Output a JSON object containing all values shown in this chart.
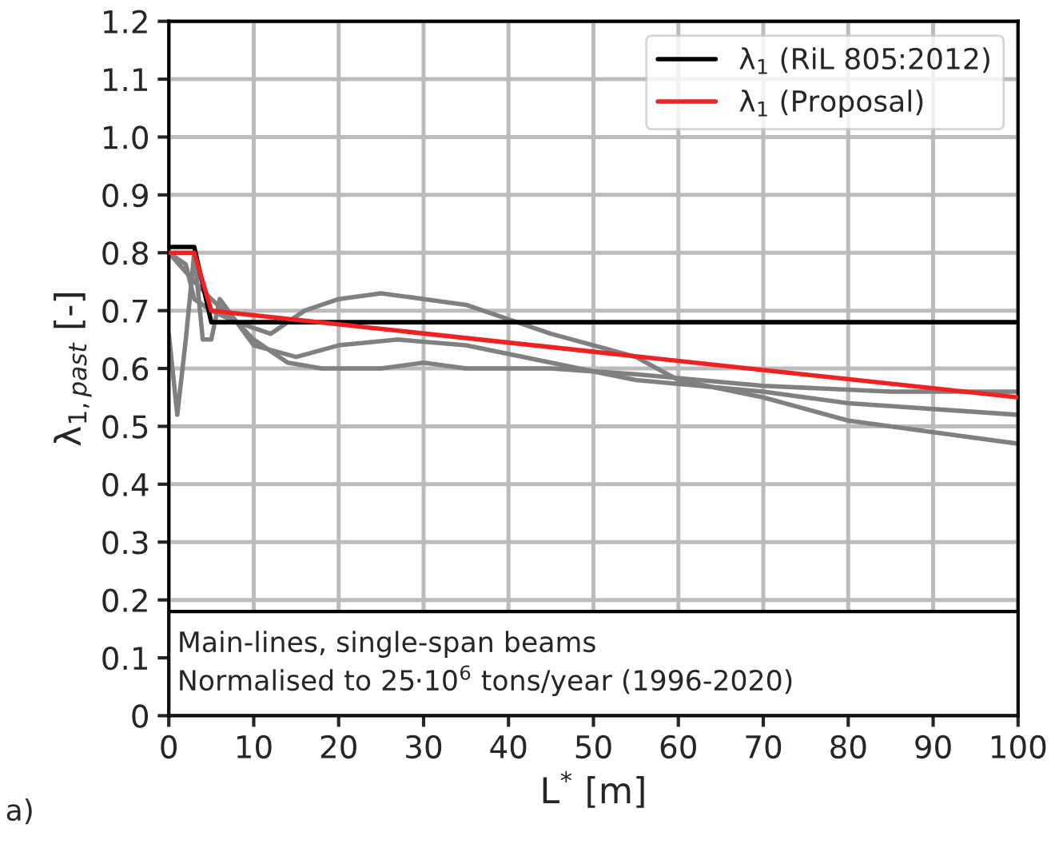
{
  "chart_data": {
    "type": "line",
    "xlabel": "L$^{*}$ [m]",
    "ylabel": "λ$_{1,past}$ [-]",
    "xlim": [
      0,
      100
    ],
    "xticks": [
      0,
      10,
      20,
      30,
      40,
      50,
      60,
      70,
      80,
      90,
      100
    ],
    "ylim": [
      0,
      1.2
    ],
    "yticks": [
      0,
      0.1,
      0.2,
      0.3,
      0.4,
      0.5,
      0.6,
      0.7,
      0.8,
      0.9,
      {
        "value": 1.0,
        "label": "1.0"
      },
      1.1,
      1.2
    ],
    "grid": true,
    "legend": "top right",
    "series": [
      {
        "color": "#808080",
        "x": [
          0,
          2,
          3,
          5,
          8,
          12,
          16,
          20,
          25,
          35,
          45,
          55,
          60,
          70,
          80,
          90,
          100
        ],
        "values": [
          0.8,
          0.78,
          0.72,
          0.7,
          0.68,
          0.66,
          0.7,
          0.72,
          0.73,
          0.71,
          0.66,
          0.62,
          0.58,
          0.55,
          0.51,
          0.49,
          0.47
        ]
      },
      {
        "color": "#808080",
        "x": [
          0,
          1,
          2,
          3,
          4,
          5,
          6,
          8,
          10,
          15,
          20,
          27,
          35,
          45,
          55,
          70,
          80,
          100
        ],
        "values": [
          0.66,
          0.52,
          0.65,
          0.8,
          0.65,
          0.65,
          0.72,
          0.68,
          0.64,
          0.62,
          0.64,
          0.65,
          0.64,
          0.61,
          0.58,
          0.56,
          0.54,
          0.52
        ]
      },
      {
        "color": "#808080",
        "x": [
          0,
          3,
          5,
          8,
          10,
          14,
          18,
          25,
          30,
          35,
          45,
          55,
          70,
          85,
          100
        ],
        "values": [
          0.8,
          0.75,
          0.72,
          0.68,
          0.65,
          0.61,
          0.6,
          0.6,
          0.61,
          0.6,
          0.6,
          0.59,
          0.57,
          0.56,
          0.56
        ]
      },
      {
        "name": "λ$_{1}$ (RiL 805:2012)",
        "color": "#000000",
        "x": [
          0,
          3,
          5,
          100
        ],
        "values": [
          0.81,
          0.81,
          0.68,
          0.68
        ]
      },
      {
        "name": "λ$_{1}$ (Proposal)",
        "color": "#ee2222",
        "x": [
          0,
          3,
          5,
          100
        ],
        "values": [
          0.8,
          0.8,
          0.7,
          0.55
        ]
      }
    ],
    "annotations": [
      "Main-lines, single-span beams\nNormalised to 25·10$^{6}$ tons/year (1996-2020)",
      "a)"
    ]
  }
}
